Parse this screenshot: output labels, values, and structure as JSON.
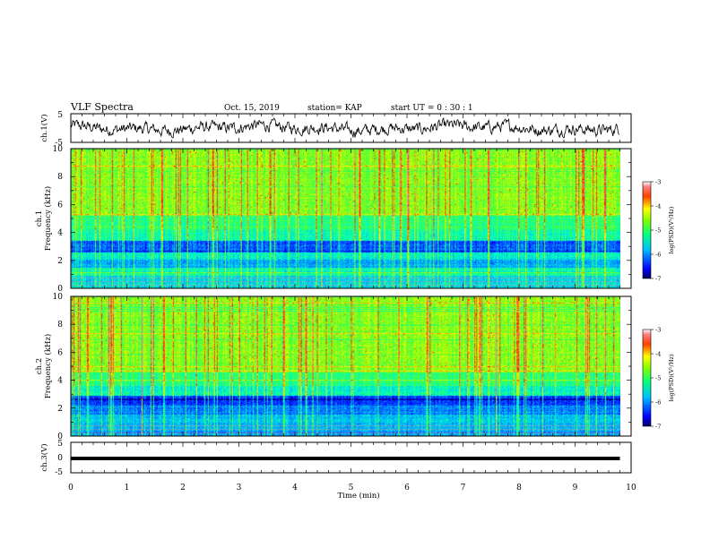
{
  "header": {
    "title": "VLF Spectra",
    "date": "Oct. 15, 2019",
    "station": "station= KAP",
    "start": "start  UT =   0 : 30 : 1"
  },
  "chart_data": [
    {
      "type": "line",
      "panel": "ch1-waveform",
      "ylabel": "ch.1(V)",
      "ylim": [
        -5,
        5
      ],
      "yticks": [
        "5",
        "-5"
      ],
      "note": "noisy waveform fluctuating roughly between -2 and 2 V over 0-9.8 min"
    },
    {
      "type": "heatmap",
      "panel": "ch1-spectrogram",
      "ylabel_top": "ch.1",
      "ylabel": "Frequency  (kHz)",
      "ylim": [
        0,
        10
      ],
      "yticks": [
        "0",
        "2",
        "4",
        "6",
        "8",
        "10"
      ],
      "colorbar": {
        "label": "log(PSD)(V²/Hz)",
        "range": [
          -7,
          -3
        ],
        "ticks": [
          "-3",
          "-4",
          "-5",
          "-6",
          "-7"
        ]
      }
    },
    {
      "type": "heatmap",
      "panel": "ch2-spectrogram",
      "ylabel_top": "ch.2",
      "ylabel": "Frequency  (kHz)",
      "ylim": [
        0,
        10
      ],
      "yticks": [
        "0",
        "2",
        "4",
        "6",
        "8",
        "10"
      ],
      "colorbar": {
        "label": "log(PSD)(V²/Hz)",
        "range": [
          -7,
          -3
        ],
        "ticks": [
          "-3",
          "-4",
          "-5",
          "-6",
          "-7"
        ]
      }
    },
    {
      "type": "line",
      "panel": "ch3-waveform",
      "ylabel": "ch.3(V)",
      "ylim": [
        -5,
        5
      ],
      "yticks": [
        "5",
        "0",
        "-5"
      ],
      "note": "flat thick line near 0 V from 0 to 9.8 min"
    }
  ],
  "xaxis": {
    "label": "Time  (min)",
    "xlim": [
      0,
      10
    ],
    "ticks": [
      "0",
      "1",
      "2",
      "3",
      "4",
      "5",
      "6",
      "7",
      "8",
      "9",
      "10"
    ],
    "data_end": 9.8
  },
  "colors": {
    "scale": [
      "#00007a",
      "#0000ff",
      "#00a0ff",
      "#00ffe0",
      "#30ff30",
      "#c8ff00",
      "#ffff00",
      "#ff8000",
      "#ff0000",
      "#ffffff"
    ]
  }
}
